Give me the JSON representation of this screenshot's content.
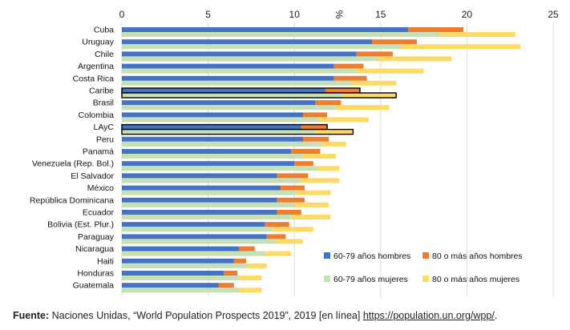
{
  "chart_data": {
    "type": "bar",
    "orientation": "horizontal",
    "stacked": true,
    "xlabel": "%",
    "xlim": [
      0,
      25
    ],
    "xticks": [
      0,
      5,
      10,
      15,
      20,
      25
    ],
    "categories": [
      "Cuba",
      "Uruguay",
      "Chile",
      "Argentina",
      "Costa Rica",
      "Caribe",
      "Brasil",
      "Colombia",
      "LAyC",
      "Peru",
      "Panamá",
      "Venezuela (Rep. Bol.)",
      "El Salvador",
      "México",
      "República Dominicana",
      "Ecuador",
      "Bolivia (Est. Plur.)",
      "Paraguay",
      "Nicaragua",
      "Haiti",
      "Honduras",
      "Guatemala"
    ],
    "highlighted": [
      "Caribe",
      "LAyC"
    ],
    "groups": [
      {
        "name": "hombres",
        "series": [
          {
            "name": "60-79 años hombres",
            "color": "#4472C4",
            "values": [
              16.6,
              14.5,
              13.6,
              12.3,
              12.3,
              11.8,
              11.2,
              10.5,
              10.4,
              10.5,
              9.8,
              10.0,
              9.0,
              9.2,
              9.0,
              9.0,
              8.3,
              8.4,
              6.8,
              6.5,
              5.9,
              5.6
            ]
          },
          {
            "name": "80 o más años hombres",
            "color": "#ED7D31",
            "values": [
              3.2,
              2.6,
              2.1,
              1.7,
              1.9,
              2.0,
              1.5,
              1.4,
              1.5,
              1.5,
              1.7,
              1.1,
              1.8,
              1.4,
              1.6,
              1.4,
              1.4,
              1.1,
              0.9,
              0.7,
              0.8,
              0.9
            ]
          }
        ]
      },
      {
        "name": "mujeres",
        "series": [
          {
            "name": "60-79 años mujeres",
            "color": "#C5E0B4",
            "values": [
              18.4,
              16.2,
              14.8,
              13.6,
              13.3,
              12.8,
              12.4,
              11.4,
              11.2,
              11.6,
              10.5,
              11.3,
              10.3,
              10.1,
              10.0,
              9.8,
              8.7,
              8.9,
              8.3,
              7.2,
              6.8,
              6.8
            ]
          },
          {
            "name": "80 o más años mujeres",
            "color": "#FFD966",
            "values": [
              4.4,
              6.9,
              4.3,
              3.9,
              2.6,
              3.1,
              3.1,
              2.9,
              2.2,
              1.4,
              1.9,
              1.3,
              2.3,
              2.0,
              2.0,
              2.3,
              2.4,
              1.6,
              1.5,
              1.2,
              1.3,
              1.3
            ]
          }
        ]
      }
    ],
    "legend_position": "bottom-right",
    "grid": true
  },
  "source": {
    "label": "Fuente:",
    "text": " Naciones Unidas, “World Population Prospects 2019”, 2019 [en línea] ",
    "url": "https://population.un.org/wpp/",
    "end": "."
  }
}
